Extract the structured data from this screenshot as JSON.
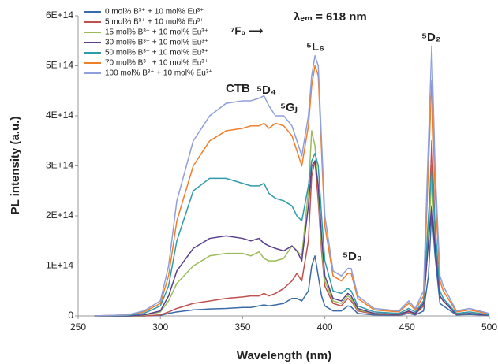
{
  "chart_data": {
    "type": "line",
    "y_label": "PL intensity (a.u.)",
    "x_label": "Wavelength (nm)",
    "annotations": [
      "CTB",
      "⁵D₄",
      "⁵Gⱼ",
      "⁷F₀ ⟶",
      "λₑₘ = 618 nm",
      "⁵L₆",
      "⁵D₃",
      "⁵D₂"
    ],
    "xlim": [
      250,
      500
    ],
    "xticks": [
      250,
      300,
      350,
      400,
      450,
      500
    ],
    "ylim": [
      0,
      600000000000000.0
    ],
    "yticks": [
      0,
      {
        "value": 100000000000000.0,
        "label": "1E+14"
      },
      {
        "value": 200000000000000.0,
        "label": "2E+14"
      },
      {
        "value": 300000000000000.0,
        "label": "3E+14"
      },
      {
        "value": 400000000000000.0,
        "label": "4E+14"
      },
      {
        "value": 500000000000000.0,
        "label": "5E+14"
      },
      {
        "value": 600000000000000.0,
        "label": "6E+14"
      }
    ],
    "x": [
      260,
      280,
      290,
      300,
      305,
      310,
      320,
      330,
      340,
      350,
      355,
      360,
      363,
      366,
      370,
      375,
      380,
      383,
      386,
      390,
      392,
      394,
      396,
      398,
      400,
      405,
      410,
      414,
      416,
      420,
      430,
      445,
      451,
      455,
      460,
      463,
      465,
      467,
      470,
      472,
      480,
      488,
      500
    ],
    "series": [
      {
        "name": "0 mol% B³⁺ + 10 mol% Eu³⁺",
        "color": "#3a6aa8",
        "values": [
          0,
          0,
          0,
          1000000000000.0,
          5000000000000.0,
          8000000000000.0,
          12000000000000.0,
          14000000000000.0,
          15000000000000.0,
          17000000000000.0,
          17000000000000.0,
          20000000000000.0,
          22000000000000.0,
          20000000000000.0,
          22000000000000.0,
          25000000000000.0,
          35000000000000.0,
          35000000000000.0,
          30000000000000.0,
          50000000000000.0,
          100000000000000.0,
          120000000000000.0,
          80000000000000.0,
          40000000000000.0,
          20000000000000.0,
          10000000000000.0,
          10000000000000.0,
          20000000000000.0,
          18000000000000.0,
          5000000000000.0,
          2000000000000.0,
          1000000000000.0,
          5000000000000.0,
          2000000000000.0,
          10000000000000.0,
          80000000000000.0,
          210000000000000.0,
          120000000000000.0,
          25000000000000.0,
          20000000000000.0,
          2000000000000.0,
          3000000000000.0,
          1000000000000.0
        ]
      },
      {
        "name": "5 mol% B³⁺ + 10 mol% Eu³⁺",
        "color": "#c0504d",
        "values": [
          0,
          0,
          0,
          2000000000000.0,
          8000000000000.0,
          15000000000000.0,
          25000000000000.0,
          30000000000000.0,
          35000000000000.0,
          38000000000000.0,
          40000000000000.0,
          40000000000000.0,
          45000000000000.0,
          40000000000000.0,
          45000000000000.0,
          55000000000000.0,
          70000000000000.0,
          85000000000000.0,
          70000000000000.0,
          150000000000000.0,
          280000000000000.0,
          310000000000000.0,
          230000000000000.0,
          130000000000000.0,
          60000000000000.0,
          25000000000000.0,
          20000000000000.0,
          35000000000000.0,
          30000000000000.0,
          10000000000000.0,
          4000000000000.0,
          2000000000000.0,
          8000000000000.0,
          4000000000000.0,
          20000000000000.0,
          150000000000000.0,
          350000000000000.0,
          180000000000000.0,
          40000000000000.0,
          30000000000000.0,
          3000000000000.0,
          5000000000000.0,
          1000000000000.0
        ]
      },
      {
        "name": "15 mol% B³⁺ + 10 mol% Eu³⁺",
        "color": "#9bbb59",
        "values": [
          0,
          0,
          1000000000000.0,
          8000000000000.0,
          30000000000000.0,
          65000000000000.0,
          100000000000000.0,
          120000000000000.0,
          125000000000000.0,
          125000000000000.0,
          120000000000000.0,
          128000000000000.0,
          115000000000000.0,
          110000000000000.0,
          110000000000000.0,
          115000000000000.0,
          140000000000000.0,
          130000000000000.0,
          120000000000000.0,
          250000000000000.0,
          370000000000000.0,
          340000000000000.0,
          250000000000000.0,
          140000000000000.0,
          70000000000000.0,
          30000000000000.0,
          25000000000000.0,
          40000000000000.0,
          35000000000000.0,
          12000000000000.0,
          5000000000000.0,
          3000000000000.0,
          10000000000000.0,
          5000000000000.0,
          25000000000000.0,
          160000000000000.0,
          275000000000000.0,
          160000000000000.0,
          40000000000000.0,
          30000000000000.0,
          3000000000000.0,
          5000000000000.0,
          1000000000000.0
        ]
      },
      {
        "name": "30 mol% B³⁺ + 10 mol% Eu³⁺",
        "color": "#5b3f8c",
        "values": [
          0,
          0,
          2000000000000.0,
          10000000000000.0,
          40000000000000.0,
          90000000000000.0,
          135000000000000.0,
          155000000000000.0,
          160000000000000.0,
          155000000000000.0,
          150000000000000.0,
          155000000000000.0,
          145000000000000.0,
          140000000000000.0,
          135000000000000.0,
          130000000000000.0,
          140000000000000.0,
          130000000000000.0,
          110000000000000.0,
          220000000000000.0,
          300000000000000.0,
          310000000000000.0,
          260000000000000.0,
          160000000000000.0,
          80000000000000.0,
          35000000000000.0,
          30000000000000.0,
          45000000000000.0,
          40000000000000.0,
          15000000000000.0,
          5000000000000.0,
          3000000000000.0,
          10000000000000.0,
          5000000000000.0,
          25000000000000.0,
          150000000000000.0,
          220000000000000.0,
          140000000000000.0,
          40000000000000.0,
          30000000000000.0,
          3000000000000.0,
          5000000000000.0,
          1000000000000.0
        ]
      },
      {
        "name": "50 mol% B³⁺ + 10 mol% Eu³⁺",
        "color": "#2f9bab",
        "values": [
          0,
          1000000000000.0,
          5000000000000.0,
          20000000000000.0,
          60000000000000.0,
          150000000000000.0,
          250000000000000.0,
          275000000000000.0,
          275000000000000.0,
          265000000000000.0,
          260000000000000.0,
          260000000000000.0,
          265000000000000.0,
          245000000000000.0,
          235000000000000.0,
          230000000000000.0,
          220000000000000.0,
          200000000000000.0,
          190000000000000.0,
          260000000000000.0,
          310000000000000.0,
          325000000000000.0,
          300000000000000.0,
          200000000000000.0,
          110000000000000.0,
          50000000000000.0,
          45000000000000.0,
          55000000000000.0,
          50000000000000.0,
          20000000000000.0,
          8000000000000.0,
          5000000000000.0,
          15000000000000.0,
          8000000000000.0,
          30000000000000.0,
          200000000000000.0,
          300000000000000.0,
          180000000000000.0,
          50000000000000.0,
          35000000000000.0,
          5000000000000.0,
          8000000000000.0,
          2000000000000.0
        ]
      },
      {
        "name": "70 mol% B³⁺ + 10 mol% Eu³⁺",
        "color": "#f07f2a",
        "values": [
          0,
          2000000000000.0,
          8000000000000.0,
          25000000000000.0,
          80000000000000.0,
          190000000000000.0,
          300000000000000.0,
          350000000000000.0,
          370000000000000.0,
          375000000000000.0,
          380000000000000.0,
          380000000000000.0,
          385000000000000.0,
          375000000000000.0,
          385000000000000.0,
          380000000000000.0,
          360000000000000.0,
          330000000000000.0,
          300000000000000.0,
          380000000000000.0,
          460000000000000.0,
          500000000000000.0,
          480000000000000.0,
          330000000000000.0,
          180000000000000.0,
          80000000000000.0,
          70000000000000.0,
          85000000000000.0,
          85000000000000.0,
          35000000000000.0,
          12000000000000.0,
          8000000000000.0,
          25000000000000.0,
          12000000000000.0,
          40000000000000.0,
          300000000000000.0,
          470000000000000.0,
          250000000000000.0,
          70000000000000.0,
          50000000000000.0,
          8000000000000.0,
          12000000000000.0,
          4000000000000.0
        ]
      },
      {
        "name": "100 mol% B³⁺ + 10 mol% Eu³⁺",
        "color": "#8f9fdc",
        "values": [
          0,
          2000000000000.0,
          10000000000000.0,
          30000000000000.0,
          100000000000000.0,
          230000000000000.0,
          350000000000000.0,
          400000000000000.0,
          425000000000000.0,
          430000000000000.0,
          430000000000000.0,
          435000000000000.0,
          440000000000000.0,
          420000000000000.0,
          400000000000000.0,
          400000000000000.0,
          380000000000000.0,
          350000000000000.0,
          320000000000000.0,
          400000000000000.0,
          480000000000000.0,
          520000000000000.0,
          500000000000000.0,
          350000000000000.0,
          200000000000000.0,
          90000000000000.0,
          80000000000000.0,
          95000000000000.0,
          95000000000000.0,
          40000000000000.0,
          15000000000000.0,
          10000000000000.0,
          30000000000000.0,
          15000000000000.0,
          50000000000000.0,
          350000000000000.0,
          540000000000000.0,
          300000000000000.0,
          80000000000000.0,
          60000000000000.0,
          10000000000000.0,
          15000000000000.0,
          5000000000000.0
        ]
      }
    ]
  }
}
